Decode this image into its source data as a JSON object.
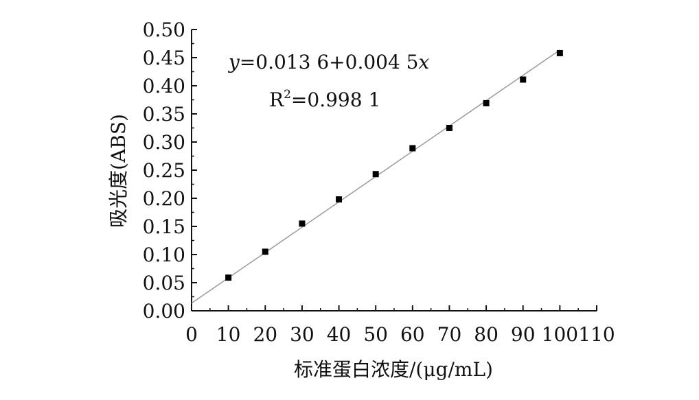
{
  "chart_data": {
    "type": "scatter",
    "xlabel": "标准蛋白浓度/(μg/mL)",
    "ylabel": "吸光度(ABS)",
    "xlim": [
      0,
      110
    ],
    "ylim": [
      0,
      0.5
    ],
    "x_ticks": [
      0,
      10,
      20,
      30,
      40,
      50,
      60,
      70,
      80,
      90,
      100,
      110
    ],
    "x_tick_labels": [
      "0",
      "10",
      "20",
      "30",
      "40",
      "50",
      "60",
      "70",
      "80",
      "90",
      "100",
      "110"
    ],
    "y_ticks": [
      0,
      0.05,
      0.1,
      0.15,
      0.2,
      0.25,
      0.3,
      0.35,
      0.4,
      0.45,
      0.5
    ],
    "y_tick_labels": [
      "0.00",
      "0.05",
      "0.10",
      "0.15",
      "0.20",
      "0.25",
      "0.30",
      "0.35",
      "0.40",
      "0.45",
      "0.50"
    ],
    "points": {
      "x": [
        10,
        20,
        30,
        40,
        50,
        60,
        70,
        80,
        90,
        100
      ],
      "y": [
        0.059,
        0.105,
        0.155,
        0.198,
        0.243,
        0.289,
        0.325,
        0.369,
        0.411,
        0.458
      ]
    },
    "fit_line": {
      "intercept": 0.0136,
      "slope": 0.0045,
      "x_range": [
        0,
        100
      ]
    },
    "annotations": {
      "equation": "y=0.013 6+0.004 5x",
      "r2_label": "R",
      "r2_sup": "2",
      "r2_value": "=0.998 1"
    },
    "grid": false,
    "legend": "none",
    "colors": {
      "points": "#000000",
      "fit_line": "#9a9a9a",
      "axes": "#111111"
    }
  }
}
